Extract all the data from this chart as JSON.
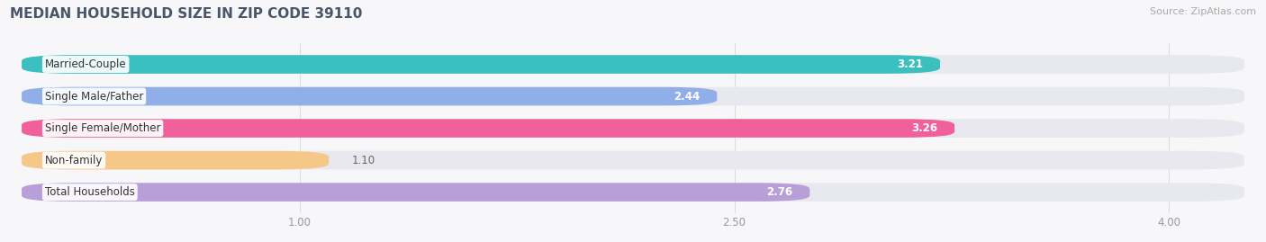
{
  "title": "MEDIAN HOUSEHOLD SIZE IN ZIP CODE 39110",
  "source": "Source: ZipAtlas.com",
  "categories": [
    "Married-Couple",
    "Single Male/Father",
    "Single Female/Mother",
    "Non-family",
    "Total Households"
  ],
  "values": [
    3.21,
    2.44,
    3.26,
    1.1,
    2.76
  ],
  "bar_colors": [
    "#3bbfbf",
    "#90aee8",
    "#f0609a",
    "#f5c888",
    "#b89fd8"
  ],
  "background_color": "#f7f7fa",
  "bar_bg_color": "#e8e8ef",
  "xlim_left": 0.0,
  "xlim_right": 4.3,
  "xaxis_min": 1.0,
  "xaxis_max": 4.0,
  "xticks": [
    1.0,
    2.5,
    4.0
  ],
  "title_fontsize": 11,
  "label_fontsize": 8.5,
  "value_fontsize": 8.5,
  "source_fontsize": 8,
  "bar_height": 0.58,
  "title_color": "#4a5568",
  "source_color": "#aaaaaa",
  "value_color_inside": "#ffffff",
  "value_color_outside": "#666666",
  "grid_color": "#dddddd",
  "tick_color": "#999999"
}
